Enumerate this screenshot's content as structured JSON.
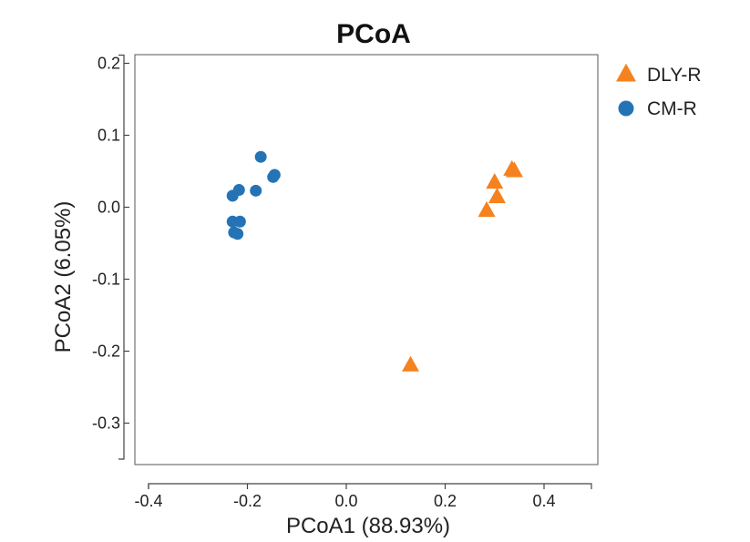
{
  "chart_data": {
    "type": "scatter",
    "title": "PCoA",
    "xlabel": "PCoA1 (88.93%)",
    "ylabel": "PCoA2 (6.05%)",
    "xlim": [
      -0.4,
      0.5
    ],
    "ylim": [
      -0.35,
      0.2
    ],
    "x_ticks": [
      -0.4,
      -0.2,
      0.0,
      0.2,
      0.4
    ],
    "x_tick_labels": [
      "-0.4",
      "-0.2",
      "0.0",
      "0.2",
      "0.4"
    ],
    "y_ticks": [
      0.2,
      0.1,
      0.0,
      -0.1,
      -0.2,
      -0.3
    ],
    "y_tick_labels": [
      "0.2",
      "0.1",
      "0.0",
      "-0.1",
      "-0.2",
      "-0.3"
    ],
    "grid": false,
    "legend_position": "top-right",
    "series": [
      {
        "name": "DLY-R",
        "marker": "triangle",
        "color": "#F5821F",
        "points": [
          [
            0.335,
            0.052
          ],
          [
            0.34,
            0.05
          ],
          [
            0.3,
            0.034
          ],
          [
            0.305,
            0.014
          ],
          [
            0.284,
            -0.005
          ],
          [
            0.13,
            -0.22
          ]
        ]
      },
      {
        "name": "CM-R",
        "marker": "circle",
        "color": "#2474B5",
        "points": [
          [
            -0.173,
            0.07
          ],
          [
            -0.145,
            0.045
          ],
          [
            -0.148,
            0.042
          ],
          [
            -0.183,
            0.023
          ],
          [
            -0.217,
            0.024
          ],
          [
            -0.23,
            0.016
          ],
          [
            -0.23,
            -0.02
          ],
          [
            -0.215,
            -0.02
          ],
          [
            -0.227,
            -0.035
          ],
          [
            -0.22,
            -0.037
          ]
        ]
      }
    ]
  }
}
